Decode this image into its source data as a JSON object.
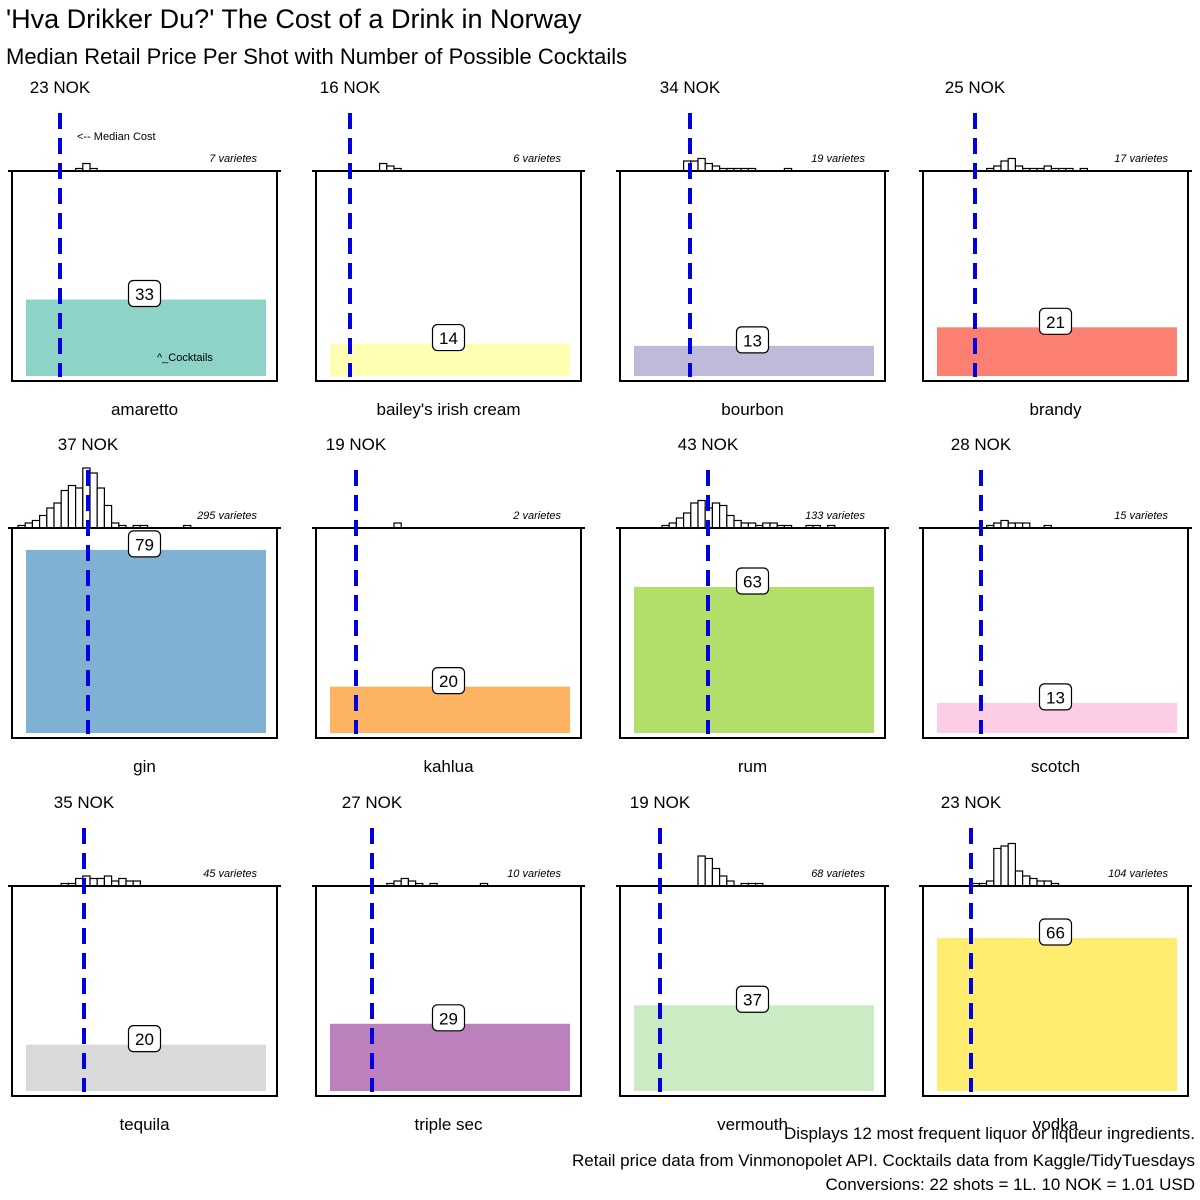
{
  "title": "'Hva Drikker Du?' The Cost of a Drink in Norway",
  "subtitle": "Median Retail Price Per Shot with Number of Possible Cocktails",
  "captions": [
    "Displays 12 most frequent liquor or liqueur ingredients.",
    "Retail price data from Vinmonopolet API. Cocktails data from Kaggle/TidyTuesdays",
    "Conversions: 22 shots = 1L. 10 NOK = 1.01 USD"
  ],
  "colors": {
    "median_line": "#0000e0",
    "frame": "#000000",
    "histogram_fill": "#ffffff"
  },
  "chart_data": {
    "type": "bar",
    "layout": "facet-grid",
    "facet_rows": 3,
    "facet_cols": 4,
    "cocktail_axis_max": 85,
    "price_unit": "NOK",
    "annotations": {
      "median_note": "<-- Median Cost",
      "cocktails_note": "^_Cocktails"
    },
    "panels": [
      {
        "name": "amaretto",
        "median_nok": 23,
        "median_label": "23 NOK",
        "cocktails": 33,
        "varieties": 7,
        "varieties_label": "7 varietes",
        "color": "#8dd3c7",
        "hist": [
          0,
          0,
          0,
          0,
          0,
          0,
          0,
          0,
          1,
          3,
          1,
          0,
          0,
          0,
          0,
          0,
          0,
          0,
          0,
          0,
          0,
          0,
          0,
          0,
          0,
          0,
          0,
          0,
          0,
          0,
          0,
          0,
          0,
          0,
          0,
          0,
          0,
          0,
          0,
          0
        ]
      },
      {
        "name": "bailey's irish cream",
        "median_nok": 16,
        "median_label": "16 NOK",
        "cocktails": 14,
        "varieties": 6,
        "varieties_label": "6 varietes",
        "color": "#ffffb3",
        "hist": [
          0,
          0,
          0,
          0,
          0,
          0,
          0,
          0,
          3,
          2,
          1,
          0,
          0,
          0,
          0,
          0,
          0,
          0,
          0,
          0,
          0,
          0,
          0,
          0,
          0,
          0,
          0,
          0,
          0,
          0,
          0,
          0,
          0,
          0,
          0,
          0,
          0,
          0,
          0,
          0
        ]
      },
      {
        "name": "bourbon",
        "median_nok": 34,
        "median_label": "34 NOK",
        "cocktails": 13,
        "varieties": 19,
        "varieties_label": "19 varietes",
        "color": "#bebada",
        "hist": [
          0,
          0,
          0,
          0,
          0,
          0,
          0,
          0,
          4,
          4,
          5,
          3,
          2,
          1,
          1,
          1,
          1,
          1,
          0,
          0,
          0,
          0,
          1,
          0,
          0,
          0,
          0,
          0,
          0,
          0,
          0,
          0,
          0,
          0,
          0,
          0,
          0,
          0,
          0,
          0
        ]
      },
      {
        "name": "brandy",
        "median_nok": 25,
        "median_label": "25 NOK",
        "cocktails": 21,
        "varieties": 17,
        "varieties_label": "17 varietes",
        "color": "#fb8072",
        "hist": [
          0,
          0,
          0,
          0,
          0,
          0,
          0,
          0,
          1,
          2,
          4,
          5,
          2,
          1,
          1,
          1,
          2,
          1,
          1,
          1,
          0,
          1,
          0,
          0,
          0,
          0,
          0,
          0,
          0,
          0,
          0,
          0,
          0,
          0,
          0,
          0,
          0,
          0,
          0,
          0
        ]
      },
      {
        "name": "gin",
        "median_nok": 37,
        "median_label": "37 NOK",
        "cocktails": 79,
        "varieties": 295,
        "varieties_label": "295 varietes",
        "color": "#80b1d3",
        "hist": [
          1,
          2,
          3,
          5,
          8,
          10,
          15,
          17,
          16,
          24,
          22,
          16,
          9,
          2,
          1,
          0,
          1,
          1,
          0,
          0,
          0,
          0,
          0,
          1,
          0,
          0,
          0,
          0,
          0,
          0,
          0,
          0,
          0,
          0,
          0,
          0,
          0,
          0,
          0,
          0
        ]
      },
      {
        "name": "kahlua",
        "median_nok": 19,
        "median_label": "19 NOK",
        "cocktails": 20,
        "varieties": 2,
        "varieties_label": "2 varietes",
        "color": "#fdb462",
        "hist": [
          0,
          0,
          0,
          0,
          0,
          0,
          0,
          0,
          0,
          0,
          2,
          0,
          0,
          0,
          0,
          0,
          0,
          0,
          0,
          0,
          0,
          0,
          0,
          0,
          0,
          0,
          0,
          0,
          0,
          0,
          0,
          0,
          0,
          0,
          0,
          0,
          0,
          0,
          0,
          0
        ]
      },
      {
        "name": "rum",
        "median_nok": 43,
        "median_label": "43 NOK",
        "cocktails": 63,
        "varieties": 133,
        "varieties_label": "133 varietes",
        "color": "#b3de69",
        "hist": [
          0,
          0,
          0,
          0,
          0,
          1,
          2,
          4,
          6,
          10,
          11,
          8,
          10,
          9,
          5,
          3,
          2,
          2,
          1,
          2,
          2,
          1,
          1,
          0,
          0,
          1,
          1,
          0,
          1,
          0,
          0,
          0,
          0,
          0,
          0,
          0,
          0,
          0,
          0,
          0
        ]
      },
      {
        "name": "scotch",
        "median_nok": 28,
        "median_label": "28 NOK",
        "cocktails": 13,
        "varieties": 15,
        "varieties_label": "15 varietes",
        "color": "#fccde5",
        "hist": [
          0,
          0,
          0,
          0,
          0,
          0,
          0,
          0,
          1,
          2,
          3,
          2,
          2,
          2,
          0,
          0,
          1,
          0,
          0,
          0,
          0,
          0,
          0,
          0,
          0,
          0,
          0,
          0,
          0,
          0,
          0,
          0,
          0,
          0,
          0,
          0,
          0,
          0,
          0,
          0
        ]
      },
      {
        "name": "tequila",
        "median_nok": 35,
        "median_label": "35 NOK",
        "cocktails": 20,
        "varieties": 45,
        "varieties_label": "45 varietes",
        "color": "#d9d9d9",
        "hist": [
          0,
          0,
          0,
          0,
          0,
          0,
          1,
          1,
          3,
          4,
          3,
          3,
          4,
          2,
          3,
          2,
          2,
          0,
          0,
          0,
          0,
          0,
          0,
          0,
          0,
          0,
          0,
          0,
          0,
          0,
          0,
          0,
          0,
          0,
          0,
          0,
          0,
          0,
          0,
          0
        ]
      },
      {
        "name": "triple sec",
        "median_nok": 27,
        "median_label": "27 NOK",
        "cocktails": 29,
        "varieties": 10,
        "varieties_label": "10 varietes",
        "color": "#bc80bd",
        "hist": [
          0,
          0,
          0,
          0,
          0,
          0,
          0,
          0,
          0,
          1,
          2,
          3,
          2,
          1,
          0,
          1,
          0,
          0,
          0,
          0,
          0,
          0,
          1,
          0,
          0,
          0,
          0,
          0,
          0,
          0,
          0,
          0,
          0,
          0,
          0,
          0,
          0,
          0,
          0,
          0
        ]
      },
      {
        "name": "vermouth",
        "median_nok": 19,
        "median_label": "19 NOK",
        "cocktails": 37,
        "varieties": 68,
        "varieties_label": "68 varietes",
        "color": "#ccebc5",
        "hist": [
          0,
          0,
          0,
          0,
          0,
          0,
          0,
          0,
          0,
          0,
          12,
          11,
          7,
          4,
          2,
          0,
          1,
          1,
          1,
          0,
          0,
          0,
          0,
          0,
          0,
          0,
          0,
          0,
          0,
          0,
          0,
          0,
          0,
          0,
          0,
          0,
          0,
          0,
          0,
          0
        ]
      },
      {
        "name": "vodka",
        "median_nok": 23,
        "median_label": "23 NOK",
        "cocktails": 66,
        "varieties": 104,
        "varieties_label": "104 varietes",
        "color": "#ffed6f",
        "hist": [
          0,
          0,
          0,
          0,
          0,
          0,
          1,
          1,
          2,
          15,
          16,
          17,
          6,
          4,
          3,
          2,
          2,
          1,
          0,
          0,
          0,
          0,
          0,
          0,
          0,
          0,
          0,
          0,
          0,
          0,
          0,
          0,
          0,
          0,
          0,
          0,
          0,
          0,
          0,
          0
        ]
      }
    ]
  }
}
